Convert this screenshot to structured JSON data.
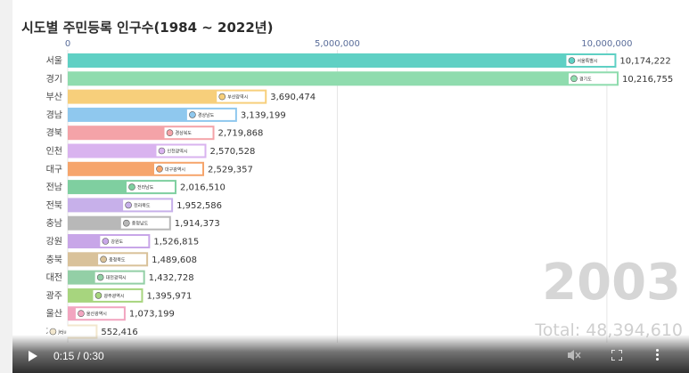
{
  "chart_data": {
    "type": "bar",
    "orientation": "horizontal",
    "title": "시도별 주민등록 인구수(1984 ~ 2022년)",
    "xticks": [
      {
        "value": 0,
        "label": "0"
      },
      {
        "value": 5000000,
        "label": "5,000,000"
      },
      {
        "value": 10000000,
        "label": "10,000,000"
      }
    ],
    "xlim": [
      0,
      10216755
    ],
    "grid": true,
    "categories": [
      "서울",
      "경기",
      "부산",
      "경남",
      "경북",
      "인천",
      "대구",
      "전남",
      "전북",
      "충남",
      "강원",
      "충북",
      "대전",
      "광주",
      "울산",
      "제주"
    ],
    "values": [
      10174222,
      10216755,
      3690474,
      3139199,
      2719868,
      2570528,
      2529357,
      2016510,
      1952586,
      1914373,
      1526815,
      1489608,
      1432728,
      1395971,
      1073199,
      552416
    ],
    "value_labels": [
      "10,174,222",
      "10,216,755",
      "3,690,474",
      "3,139,199",
      "2,719,868",
      "2,570,528",
      "2,529,357",
      "2,016,510",
      "1,952,586",
      "1,914,373",
      "1,526,815",
      "1,489,608",
      "1,432,728",
      "1,395,971",
      "1,073,199",
      "552,416"
    ],
    "colors": [
      "#5fd0c4",
      "#8fdcae",
      "#f7cf7b",
      "#8fc8ee",
      "#f4a3a8",
      "#d9b3ef",
      "#f6a56c",
      "#7fcfa0",
      "#c7b0ea",
      "#b8b8b8",
      "#c8a6e8",
      "#d9c29a",
      "#93cfa6",
      "#a7d57e",
      "#f2a5c0",
      "#f2e7ce"
    ],
    "logo_labels": [
      "서울특별시",
      "경기도",
      "부산광역시",
      "경상남도",
      "경상북도",
      "인천광역시",
      "대구광역시",
      "전라남도",
      "전라북도",
      "충청남도",
      "강원도",
      "충청북도",
      "대전광역시",
      "광주광역시",
      "울산광역시",
      "Jeju"
    ],
    "year": "2003",
    "total_label": "Total: 48,394,610"
  },
  "player": {
    "time": "0:15 / 0:30",
    "icons": [
      "play-icon",
      "mute-icon",
      "fullscreen-icon",
      "more-options-icon"
    ]
  }
}
